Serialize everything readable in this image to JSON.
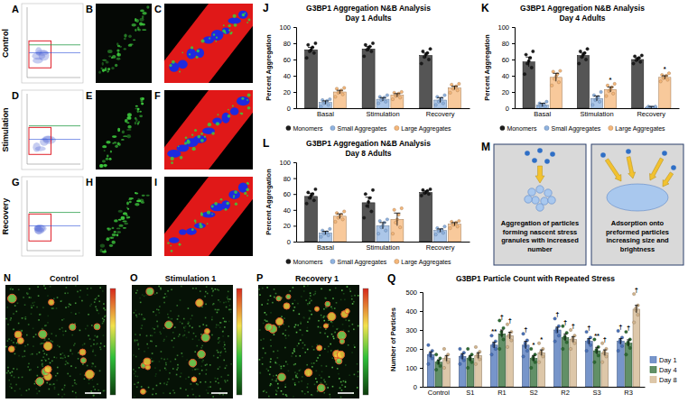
{
  "chart_data": [
    {
      "panel": "J",
      "type": "bar",
      "title": "G3BP1 Aggregation N&B Analysis",
      "subtitle": "Day 1 Adults",
      "y_label": "Percent Aggregation",
      "categories": [
        "Basal",
        "Stimulation",
        "Recovery"
      ],
      "ylim": [
        0,
        100
      ],
      "yticks": [
        0,
        20,
        40,
        60,
        80,
        100
      ],
      "legend": "bottom",
      "series": [
        {
          "name": "Monomers",
          "color": "#1c1c1c",
          "values": [
            72,
            73,
            65
          ],
          "errors": [
            3,
            3,
            3
          ],
          "points": [
            [
              62,
              68,
              70,
              72,
              75,
              78,
              80
            ],
            [
              64,
              70,
              72,
              74,
              76,
              78,
              80
            ],
            [
              55,
              60,
              63,
              66,
              68,
              70,
              73
            ]
          ]
        },
        {
          "name": "Small Aggregates",
          "color": "#8fb3e0",
          "values": [
            7,
            11,
            10
          ],
          "errors": [
            2,
            2,
            3
          ],
          "points": [
            [
              2,
              4,
              6,
              7,
              9,
              10,
              11
            ],
            [
              6,
              8,
              10,
              11,
              13,
              14,
              16
            ],
            [
              4,
              6,
              8,
              10,
              12,
              14,
              16
            ]
          ]
        },
        {
          "name": "Large Aggregates",
          "color": "#f5b77a",
          "values": [
            20,
            16,
            25
          ],
          "errors": [
            2,
            2,
            2
          ],
          "points": [
            [
              14,
              17,
              19,
              20,
              22,
              24,
              25
            ],
            [
              11,
              13,
              15,
              16,
              18,
              19,
              20
            ],
            [
              19,
              22,
              24,
              25,
              27,
              29,
              30
            ]
          ]
        }
      ]
    },
    {
      "panel": "K",
      "type": "bar",
      "title": "G3BP1 Aggregation N&B Analysis",
      "subtitle": "Day 4 Adults",
      "y_label": "Percent Aggregation",
      "categories": [
        "Basal",
        "Stimulation",
        "Recovery"
      ],
      "ylim": [
        0,
        100
      ],
      "yticks": [
        0,
        20,
        40,
        60,
        80,
        100
      ],
      "legend": "bottom",
      "series": [
        {
          "name": "Monomers",
          "color": "#1c1c1c",
          "values": [
            57,
            65,
            60
          ],
          "errors": [
            6,
            3,
            2
          ],
          "points": [
            [
              42,
              50,
              55,
              58,
              62,
              66,
              70
            ],
            [
              55,
              60,
              63,
              66,
              68,
              70,
              73
            ],
            [
              55,
              57,
              59,
              61,
              62,
              64,
              65
            ]
          ]
        },
        {
          "name": "Small Aggregates",
          "color": "#8fb3e0",
          "values": [
            4,
            12,
            1
          ],
          "errors": [
            2,
            3,
            1
          ],
          "points": [
            [
              1,
              2,
              3,
              4,
              5,
              6,
              8
            ],
            [
              4,
              8,
              10,
              12,
              14,
              16,
              20
            ],
            [
              0,
              0,
              1,
              1,
              1,
              2,
              2
            ]
          ]
        },
        {
          "name": "Large Aggregates",
          "color": "#f5b77a",
          "values": [
            38,
            23,
            38
          ],
          "errors": [
            5,
            3,
            2
          ],
          "annotations": [
            null,
            "*",
            "*"
          ],
          "points": [
            [
              28,
              32,
              36,
              39,
              42,
              45,
              46
            ],
            [
              15,
              18,
              21,
              23,
              26,
              28,
              30
            ],
            [
              33,
              35,
              37,
              38,
              40,
              41,
              43
            ]
          ]
        }
      ]
    },
    {
      "panel": "L",
      "type": "bar",
      "title": "G3BP1 Aggregation N&B Analysis",
      "subtitle": "Day 8 Adults",
      "y_label": "Percent Aggregation",
      "categories": [
        "Basal",
        "Stimulation",
        "Recovery"
      ],
      "ylim": [
        0,
        100
      ],
      "yticks": [
        0,
        20,
        40,
        60,
        80,
        100
      ],
      "legend": "bottom",
      "series": [
        {
          "name": "Monomers",
          "color": "#1c1c1c",
          "values": [
            57,
            49,
            62
          ],
          "errors": [
            4,
            7,
            2
          ],
          "points": [
            [
              48,
              52,
              55,
              58,
              60,
              62,
              66
            ],
            [
              30,
              38,
              45,
              50,
              55,
              60,
              65
            ],
            [
              58,
              60,
              61,
              62,
              64,
              65,
              66
            ]
          ]
        },
        {
          "name": "Small Aggregates",
          "color": "#8fb3e0",
          "values": [
            11,
            20,
            14
          ],
          "errors": [
            2,
            4,
            2
          ],
          "points": [
            [
              6,
              8,
              10,
              11,
              12,
              14,
              16
            ],
            [
              10,
              14,
              18,
              20,
              24,
              26,
              28
            ],
            [
              9,
              11,
              13,
              14,
              15,
              17,
              19
            ]
          ]
        },
        {
          "name": "Large Aggregates",
          "color": "#f5b77a",
          "values": [
            32,
            28,
            22
          ],
          "errors": [
            3,
            8,
            2
          ],
          "points": [
            [
              25,
              28,
              30,
              32,
              34,
              36,
              38
            ],
            [
              10,
              18,
              24,
              28,
              34,
              40,
              42
            ],
            [
              17,
              19,
              21,
              22,
              24,
              25,
              26
            ]
          ]
        }
      ]
    },
    {
      "panel": "Q",
      "type": "bar",
      "title": "G3BP1 Particle Count with Repeated Stress",
      "y_label": "Number of Particles",
      "categories": [
        "Control",
        "S1",
        "R1",
        "S2",
        "R2",
        "S3",
        "R3"
      ],
      "ylim": [
        0,
        500
      ],
      "yticks": [
        0,
        100,
        200,
        300,
        400,
        500
      ],
      "legend": "right",
      "series": [
        {
          "name": "Day 1",
          "color": "#4a72b8",
          "values": [
            170,
            160,
            220,
            220,
            300,
            240,
            240
          ],
          "errors": [
            15,
            15,
            15,
            20,
            15,
            15,
            15
          ],
          "annotations": [
            null,
            null,
            "**",
            "†",
            "†",
            "†",
            "†"
          ],
          "points": [
            [
              120,
              150,
              165,
              175,
              190,
              220
            ],
            [
              120,
              140,
              155,
              165,
              180,
              200
            ],
            [
              170,
              200,
              215,
              225,
              240,
              270
            ],
            [
              160,
              190,
              215,
              230,
              245,
              280
            ],
            [
              240,
              270,
              290,
              305,
              320,
              360
            ],
            [
              190,
              220,
              235,
              245,
              260,
              290
            ],
            [
              190,
              215,
              235,
              245,
              260,
              295
            ]
          ]
        },
        {
          "name": "Day 4",
          "color": "#2e6b34",
          "values": [
            130,
            150,
            280,
            150,
            260,
            190,
            230
          ],
          "errors": [
            12,
            15,
            20,
            15,
            18,
            18,
            18
          ],
          "annotations": [
            null,
            null,
            "†",
            "*",
            "†",
            "**",
            "†"
          ],
          "points": [
            [
              90,
              110,
              125,
              135,
              150,
              170
            ],
            [
              100,
              130,
              145,
              155,
              170,
              200
            ],
            [
              200,
              250,
              275,
              290,
              310,
              350
            ],
            [
              100,
              130,
              145,
              155,
              170,
              200
            ],
            [
              200,
              235,
              255,
              265,
              285,
              320
            ],
            [
              130,
              165,
              185,
              195,
              210,
              250
            ],
            [
              170,
              205,
              225,
              235,
              250,
              290
            ]
          ]
        },
        {
          "name": "Day 8",
          "color": "#d2b48c",
          "values": [
            150,
            165,
            270,
            180,
            250,
            180,
            410
          ],
          "errors": [
            15,
            15,
            18,
            15,
            15,
            15,
            20
          ],
          "annotations": [
            null,
            null,
            "†",
            "*",
            "†",
            "†",
            "†"
          ],
          "points": [
            [
              100,
              130,
              145,
              155,
              170,
              200
            ],
            [
              120,
              145,
              160,
              170,
              185,
              210
            ],
            [
              210,
              245,
              265,
              275,
              290,
              330
            ],
            [
              130,
              160,
              175,
              185,
              200,
              230
            ],
            [
              200,
              230,
              245,
              255,
              270,
              300
            ],
            [
              130,
              160,
              175,
              185,
              200,
              230
            ],
            [
              340,
              380,
              405,
              415,
              430,
              490
            ]
          ]
        }
      ]
    }
  ],
  "image_grid": {
    "letters": [
      [
        "A",
        "B",
        "C"
      ],
      [
        "D",
        "E",
        "F"
      ],
      [
        "G",
        "H",
        "I"
      ]
    ],
    "row_labels": [
      "Control",
      "Stimulation",
      "Recovery"
    ]
  },
  "diagram": {
    "letter": "M",
    "boxes": [
      "Aggregation of particles forming nascent stress granules with increased number",
      "Adsorption onto preformed particles increasing size and brightness"
    ]
  },
  "heatmap_images": {
    "letters": [
      "N",
      "O",
      "P"
    ],
    "titles": [
      "Control",
      "Stimulation 1",
      "Recovery 1"
    ]
  }
}
